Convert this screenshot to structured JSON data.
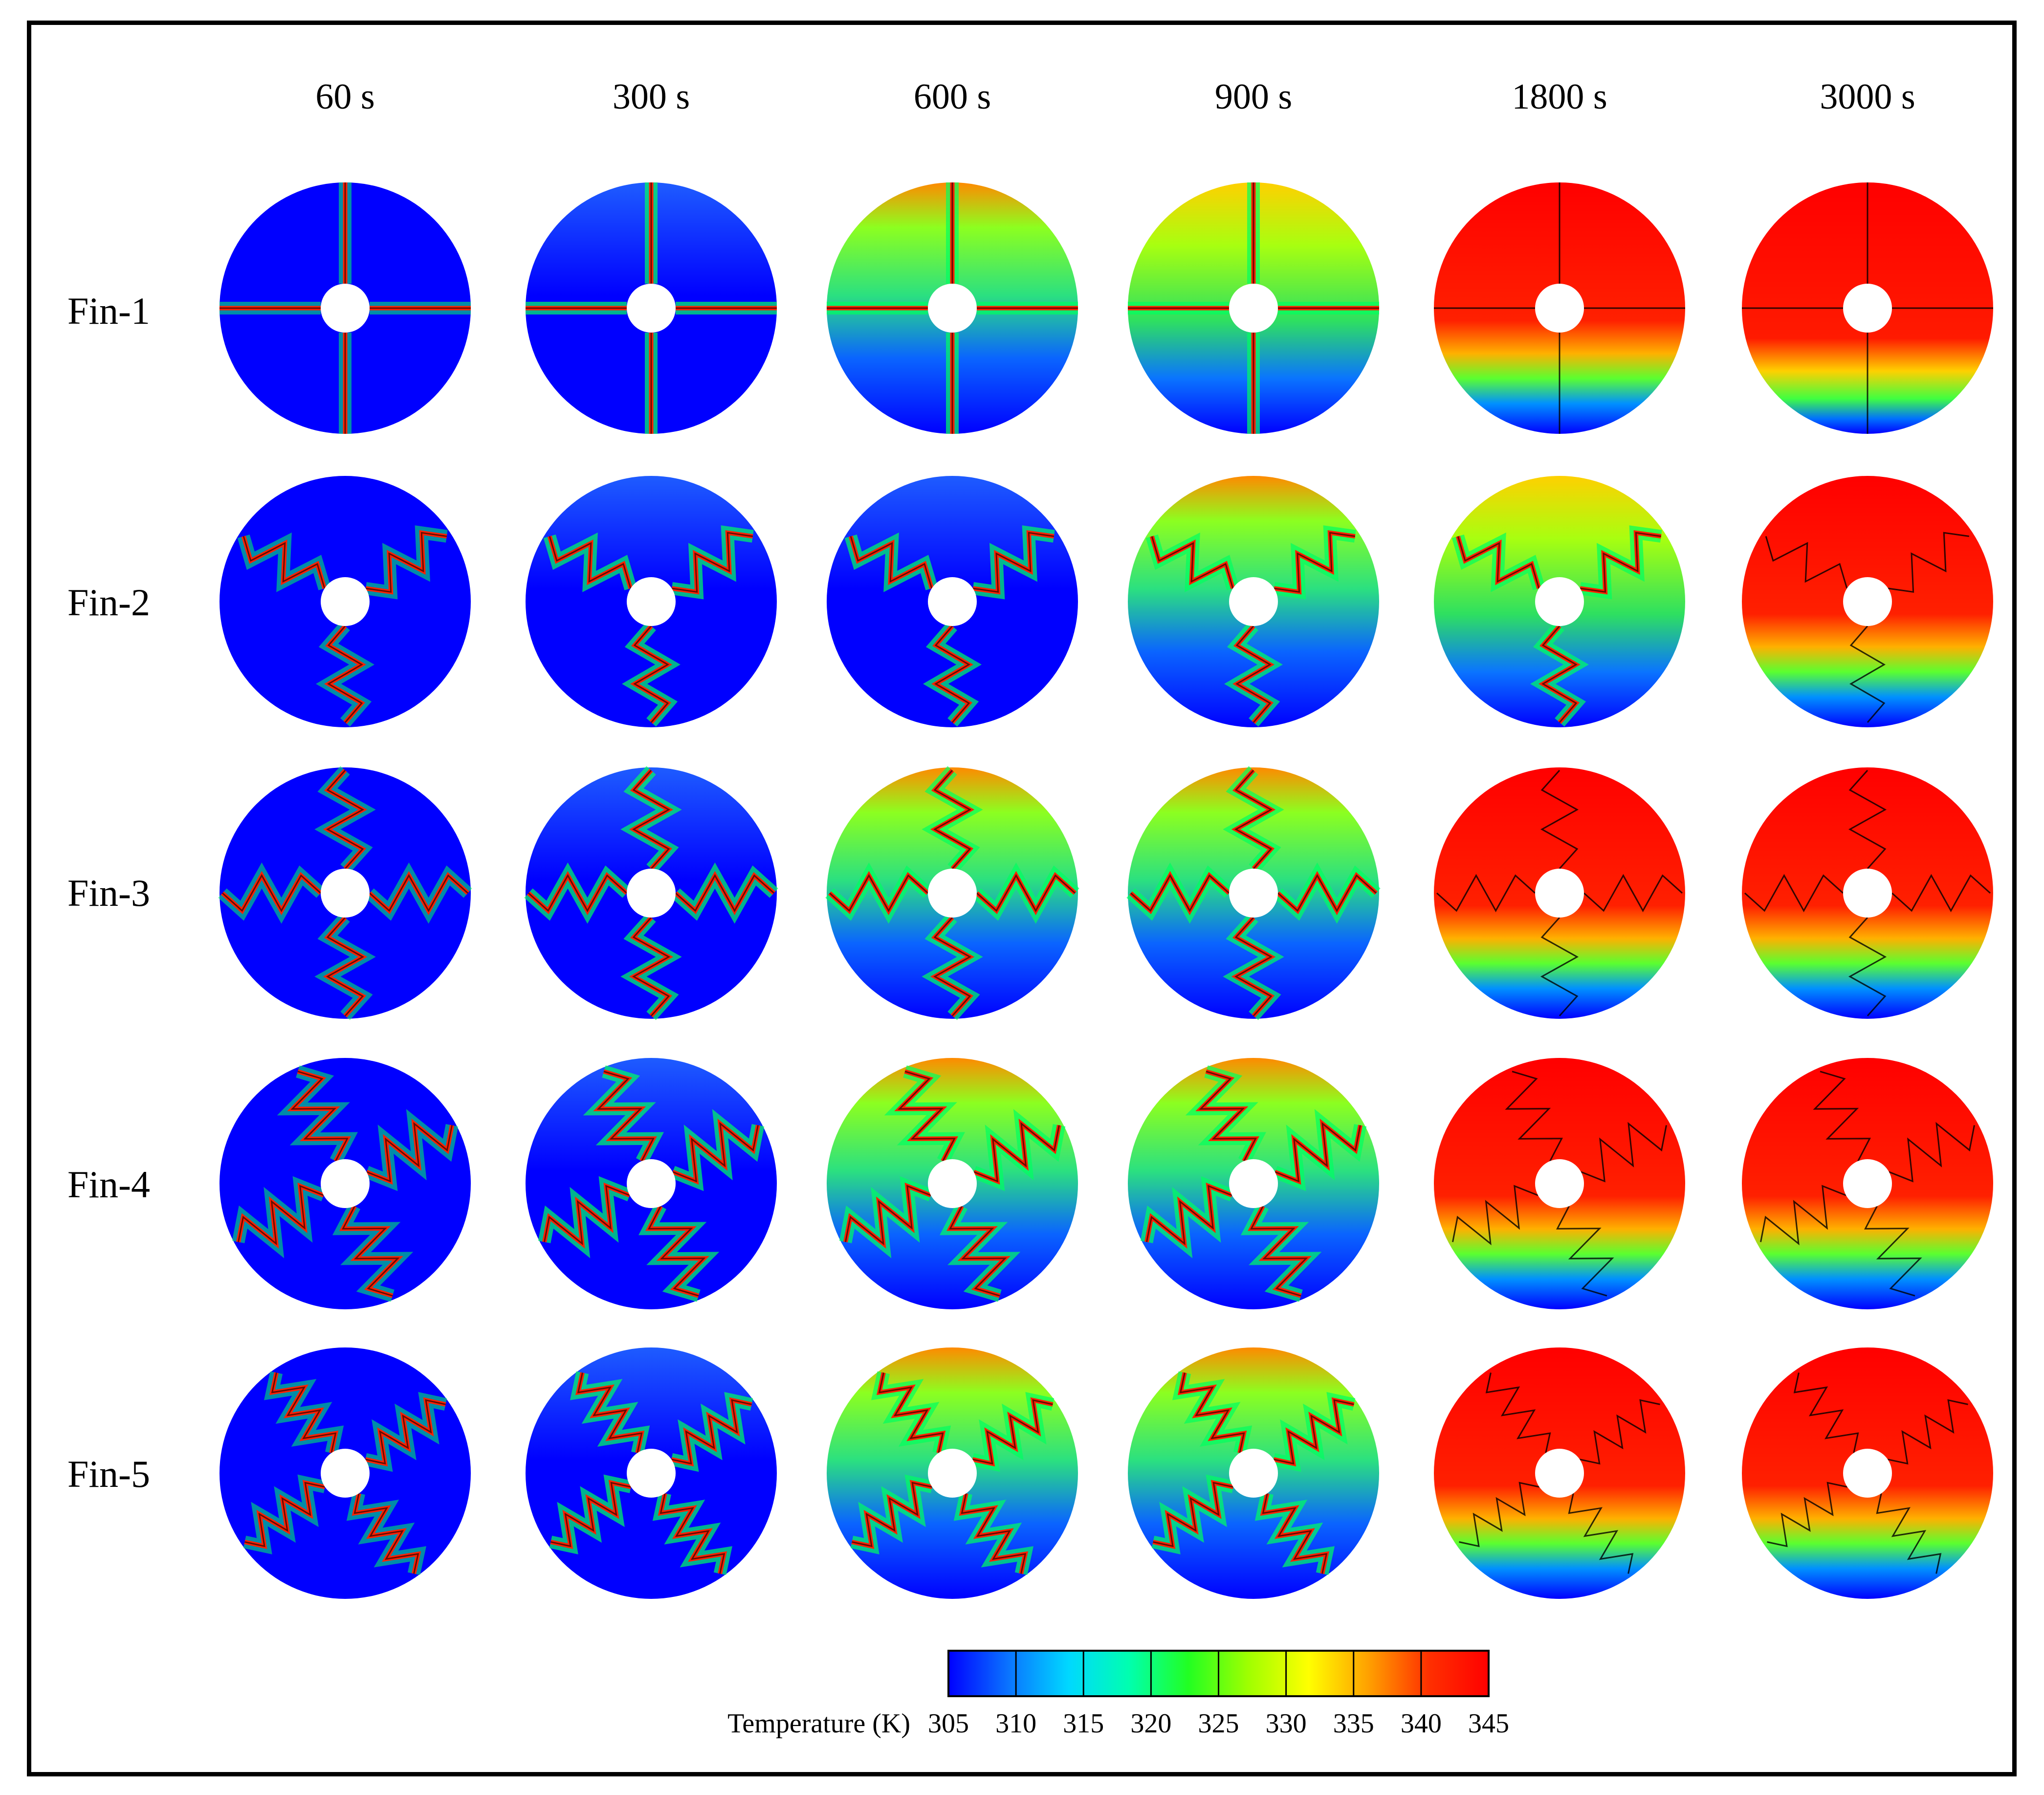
{
  "figure": {
    "time_labels": [
      "60 s",
      "300 s",
      "600 s",
      "900 s",
      "1800 s",
      "3000 s"
    ],
    "row_labels": [
      "Fin-1",
      "Fin-2",
      "Fin-3",
      "Fin-4",
      "Fin-5"
    ],
    "fin_types": [
      "cross",
      "zigzag-3",
      "zigzag-4",
      "zigzag-4-long",
      "zigzag-4-dense"
    ],
    "fields": [
      [
        "cold",
        "warming",
        "mid",
        "mid-hot",
        "hot",
        "hot-bottom"
      ],
      [
        "cold",
        "warming",
        "warming",
        "mid",
        "mid-hot",
        "hot"
      ],
      [
        "cold",
        "warming",
        "mid",
        "mid",
        "hot",
        "hot"
      ],
      [
        "cold",
        "warming",
        "mid",
        "mid",
        "hot",
        "hot"
      ],
      [
        "cold",
        "warming",
        "mid",
        "mid",
        "hot",
        "hot"
      ]
    ]
  },
  "colorbar": {
    "title": "Temperature (K)",
    "ticks": [
      "305",
      "310",
      "315",
      "320",
      "325",
      "330",
      "335",
      "340",
      "345"
    ],
    "colors": [
      "#0000ff",
      "#0a74ff",
      "#00d8ff",
      "#00ffb0",
      "#22ff22",
      "#a0ff00",
      "#ffff00",
      "#ffa000",
      "#ff3000",
      "#ff0000"
    ]
  }
}
